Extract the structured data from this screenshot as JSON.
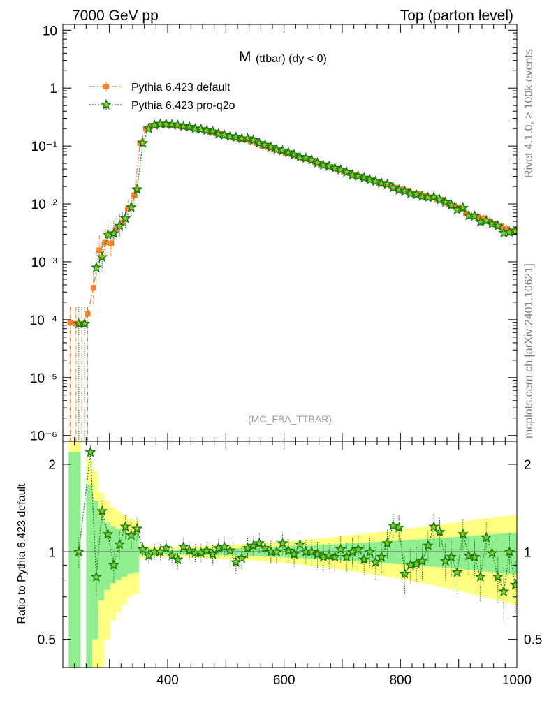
{
  "header": {
    "left": "7000 GeV pp",
    "right": "Top (parton level)"
  },
  "side_labels": {
    "rivet": "Rivet 4.1.0, ≥ 100k events",
    "mcplots": "mcplots.cern.ch [arXiv:2401.10621]"
  },
  "chart_data": [
    {
      "type": "line",
      "panel": "main",
      "title_main": "M",
      "title_sub": "(ttbar) (dy < 0)",
      "watermark": "(MC_FBA_TTBAR)",
      "yscale": "log",
      "xlim": [
        220,
        1000
      ],
      "ylim_log10": [
        -6.1,
        1.1
      ],
      "x_ticks": [
        400,
        600,
        800,
        1000
      ],
      "y_tick_labels": [
        "10",
        "1",
        "10⁻¹",
        "10⁻²",
        "10⁻³",
        "10⁻⁴",
        "10⁻⁵",
        "10⁻⁶"
      ],
      "y_tick_exponents": [
        1,
        0,
        -1,
        -2,
        -3,
        -4,
        -5,
        -6
      ],
      "legend_position": "top-left",
      "x": [
        235,
        245,
        255,
        265,
        275,
        285,
        295,
        305,
        315,
        325,
        335,
        345,
        355,
        365,
        375,
        385,
        395,
        405,
        415,
        425,
        435,
        445,
        455,
        465,
        475,
        485,
        495,
        505,
        515,
        525,
        535,
        545,
        555,
        565,
        575,
        585,
        595,
        605,
        615,
        625,
        635,
        645,
        655,
        665,
        675,
        685,
        695,
        705,
        715,
        725,
        735,
        745,
        755,
        765,
        775,
        785,
        795,
        805,
        815,
        825,
        835,
        845,
        855,
        865,
        875,
        885,
        895,
        905,
        915,
        925,
        935,
        945,
        955,
        965,
        975,
        985,
        995
      ],
      "series": [
        {
          "name": "Pythia 6.423 default",
          "color": "#ff7f2a",
          "marker": "square",
          "line": "dash-dot",
          "log10": [
            -4.05,
            -4.07,
            -4.07,
            -3.9,
            -3.45,
            -2.8,
            -2.67,
            -2.68,
            -2.42,
            -2.32,
            -2.08,
            -1.85,
            -0.95,
            -0.7,
            -0.65,
            -0.63,
            -0.62,
            -0.64,
            -0.64,
            -0.66,
            -0.67,
            -0.69,
            -0.71,
            -0.73,
            -0.76,
            -0.78,
            -0.78,
            -0.83,
            -0.85,
            -0.88,
            -0.89,
            -0.92,
            -0.95,
            -1.0,
            -1.02,
            -1.06,
            -1.08,
            -1.13,
            -1.14,
            -1.18,
            -1.21,
            -1.23,
            -1.28,
            -1.32,
            -1.33,
            -1.37,
            -1.41,
            -1.44,
            -1.47,
            -1.5,
            -1.53,
            -1.56,
            -1.59,
            -1.64,
            -1.66,
            -1.68,
            -1.72,
            -1.75,
            -1.77,
            -1.82,
            -1.83,
            -1.86,
            -1.89,
            -1.93,
            -1.93,
            -2.01,
            -2.04,
            -2.06,
            -2.17,
            -2.21,
            -2.22,
            -2.25,
            -2.3,
            -2.35,
            -2.39,
            -2.43,
            -2.47
          ]
        },
        {
          "name": "Pythia 6.423 pro-q2o",
          "color": "#117711",
          "marker": "star",
          "line": "dotted",
          "log10": [
            null,
            -4.07,
            -4.07,
            null,
            -3.1,
            -2.92,
            -2.53,
            -2.51,
            -2.38,
            -2.25,
            -2.06,
            -1.75,
            -0.95,
            -0.7,
            -0.64,
            -0.62,
            -0.62,
            -0.63,
            -0.64,
            -0.66,
            -0.67,
            -0.7,
            -0.71,
            -0.73,
            -0.75,
            -0.79,
            -0.81,
            -0.83,
            -0.85,
            -0.87,
            -0.87,
            -0.9,
            -0.95,
            -0.98,
            -1.02,
            -1.06,
            -1.08,
            -1.11,
            -1.15,
            -1.19,
            -1.21,
            -1.24,
            -1.29,
            -1.33,
            -1.35,
            -1.38,
            -1.41,
            -1.45,
            -1.5,
            -1.52,
            -1.55,
            -1.58,
            -1.61,
            -1.64,
            -1.66,
            -1.72,
            -1.76,
            -1.78,
            -1.82,
            -1.84,
            -1.87,
            -1.89,
            -1.88,
            -1.93,
            -1.97,
            -2.02,
            -2.1,
            -2.07,
            -2.2,
            -2.21,
            -2.31,
            -2.29,
            -2.34,
            -2.38,
            -2.5,
            -2.49,
            -2.47
          ]
        }
      ]
    },
    {
      "type": "line",
      "panel": "ratio",
      "ylabel": "Ratio to Pythia 6.423 default",
      "xlim": [
        220,
        1000
      ],
      "ylim_log": [
        0.4,
        2.4
      ],
      "x_tick_labels": [
        "400",
        "600",
        "800",
        "1000"
      ],
      "y_tick_labels": [
        "0.5",
        "1",
        "2"
      ],
      "bands": {
        "green_color": "#90ee90",
        "yellow_color": "#ffff80",
        "green_halfwidth": [
          1.2,
          1.2,
          0.0,
          0.7,
          0.5,
          0.32,
          0.26,
          0.22,
          0.2,
          0.18,
          0.16,
          0.15,
          0.025,
          0.022,
          0.02,
          0.02,
          0.02,
          0.02,
          0.02,
          0.02,
          0.021,
          0.022,
          0.023,
          0.024,
          0.025,
          0.026,
          0.027,
          0.028,
          0.029,
          0.03,
          0.031,
          0.032,
          0.034,
          0.036,
          0.038,
          0.04,
          0.042,
          0.044,
          0.046,
          0.048,
          0.05,
          0.052,
          0.054,
          0.056,
          0.058,
          0.06,
          0.063,
          0.066,
          0.069,
          0.072,
          0.075,
          0.078,
          0.081,
          0.084,
          0.087,
          0.09,
          0.093,
          0.096,
          0.099,
          0.102,
          0.105,
          0.108,
          0.111,
          0.114,
          0.117,
          0.12,
          0.124,
          0.128,
          0.132,
          0.136,
          0.14,
          0.144,
          0.148,
          0.152,
          0.156,
          0.16,
          0.165
        ],
        "yellow_halfwidth": [
          1.6,
          1.6,
          0.0,
          1.1,
          0.9,
          0.6,
          0.5,
          0.42,
          0.38,
          0.34,
          0.3,
          0.28,
          0.05,
          0.045,
          0.04,
          0.04,
          0.04,
          0.04,
          0.041,
          0.042,
          0.043,
          0.045,
          0.047,
          0.049,
          0.051,
          0.053,
          0.055,
          0.057,
          0.059,
          0.062,
          0.064,
          0.067,
          0.07,
          0.073,
          0.076,
          0.08,
          0.083,
          0.087,
          0.091,
          0.095,
          0.1,
          0.104,
          0.109,
          0.114,
          0.119,
          0.124,
          0.13,
          0.136,
          0.142,
          0.148,
          0.154,
          0.16,
          0.166,
          0.172,
          0.178,
          0.184,
          0.19,
          0.197,
          0.204,
          0.211,
          0.218,
          0.225,
          0.232,
          0.239,
          0.246,
          0.254,
          0.262,
          0.27,
          0.278,
          0.286,
          0.294,
          0.302,
          0.31,
          0.318,
          0.326,
          0.334,
          0.342
        ]
      },
      "series": [
        {
          "name": "Pythia 6.423 pro-q2o / default",
          "color": "#117711",
          "marker": "star",
          "values": [
            null,
            1.0,
            null,
            2.2,
            0.82,
            1.38,
            1.15,
            0.9,
            1.06,
            1.22,
            1.14,
            1.2,
            1.02,
            0.97,
            1.0,
            1.0,
            1.03,
            0.97,
            0.94,
            1.04,
            1.01,
            0.99,
            0.99,
            1.01,
            0.98,
            1.03,
            1.04,
            1.01,
            0.92,
            0.95,
            1.03,
            1.05,
            1.07,
            1.03,
            1.0,
            1.0,
            1.07,
            1.01,
            0.98,
            1.06,
            1.0,
            1.0,
            0.98,
            0.96,
            0.97,
            0.96,
            1.02,
            0.96,
            1.0,
            1.02,
            0.94,
            1.0,
            0.92,
            0.96,
            1.07,
            1.23,
            1.21,
            0.84,
            0.9,
            0.91,
            0.93,
            1.05,
            1.22,
            1.17,
            0.93,
            0.96,
            0.85,
            1.15,
            0.97,
            0.96,
            0.82,
            1.12,
            0.99,
            0.82,
            0.73,
            1.0,
            0.77
          ]
        }
      ]
    }
  ]
}
